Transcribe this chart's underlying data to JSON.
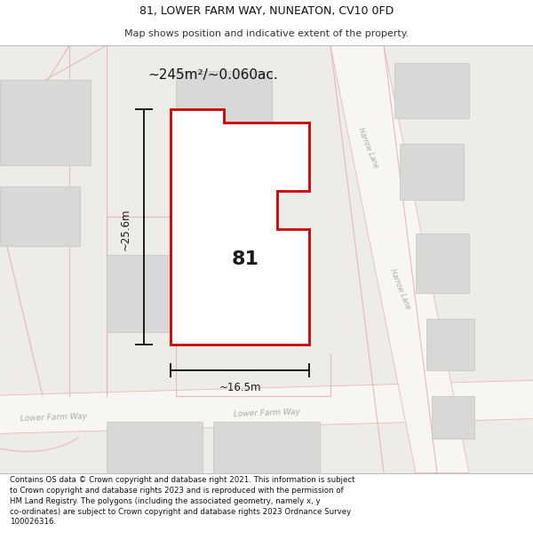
{
  "title": "81, LOWER FARM WAY, NUNEATON, CV10 0FD",
  "subtitle": "Map shows position and indicative extent of the property.",
  "footer": "Contains OS data © Crown copyright and database right 2021. This information is subject\nto Crown copyright and database rights 2023 and is reproduced with the permission of\nHM Land Registry. The polygons (including the associated geometry, namely x, y\nco-ordinates) are subject to Crown copyright and database rights 2023 Ordnance Survey\n100026316.",
  "area_label": "~245m²/~0.060ac.",
  "width_label": "~16.5m",
  "height_label": "~25.6m",
  "plot_number": "81",
  "map_bg": "#f0eeea",
  "plot_fill": "#ffffff",
  "plot_edge_color": "#cc0000",
  "plot_edge_width": 2.0,
  "dim_line_color": "#1a1a1a",
  "street_name1": "Lower Farm Way",
  "street_name2": "Harrow Lane",
  "title_fontsize": 9,
  "subtitle_fontsize": 8,
  "footer_fontsize": 6.2
}
